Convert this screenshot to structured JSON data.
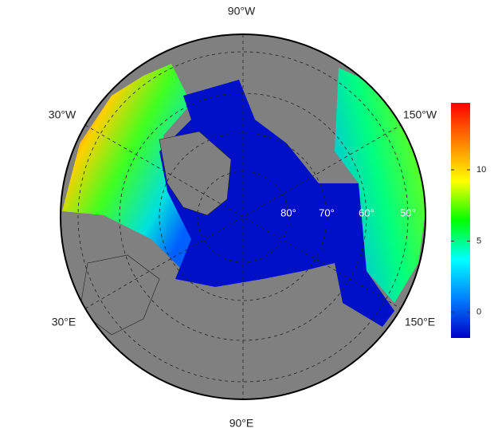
{
  "map": {
    "lon_labels": [
      "90°W",
      "30°W",
      "150°W",
      "30°E",
      "150°E",
      "90°E"
    ],
    "lat_labels": [
      "80°",
      "70°",
      "60°",
      "50°"
    ],
    "colorbar": {
      "range": [
        -1.8,
        14.7
      ],
      "ticks": [
        0,
        5,
        10
      ],
      "colors": [
        "#0000c8",
        "#0080ff",
        "#00ffff",
        "#00ff00",
        "#ffff00",
        "#ff8000",
        "#ff0000"
      ]
    }
  }
}
